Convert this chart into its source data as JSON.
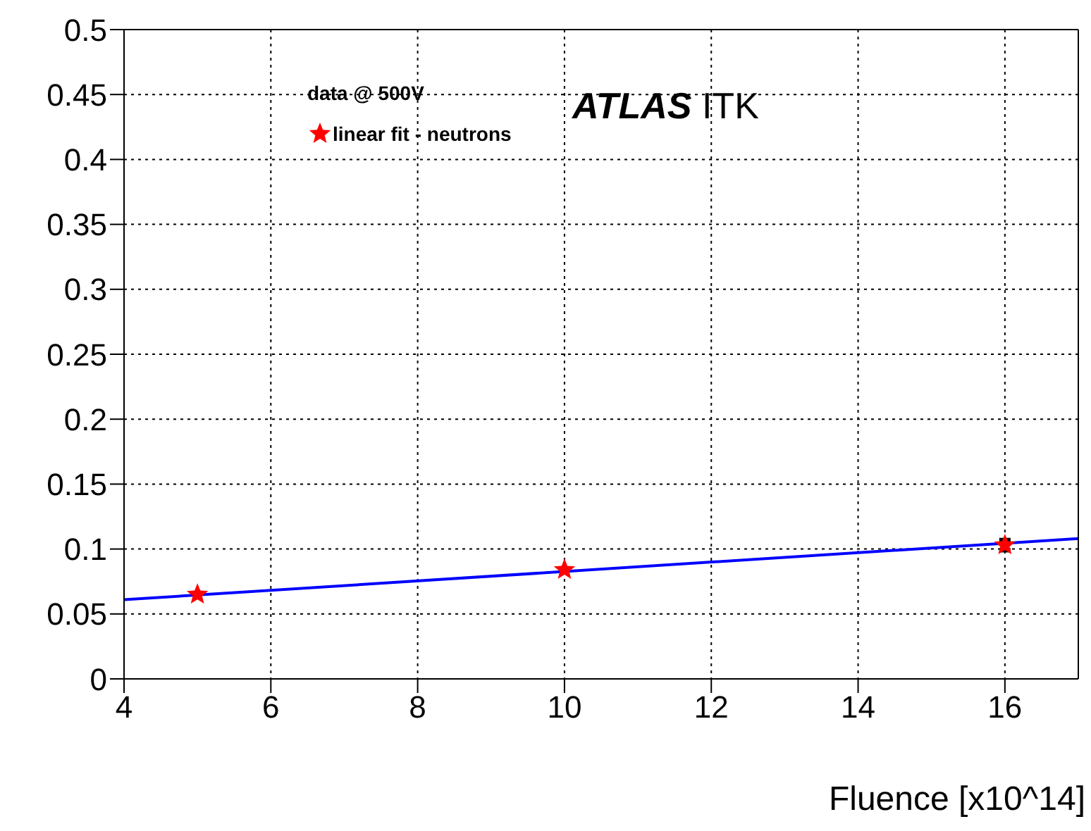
{
  "chart_data": {
    "type": "scatter",
    "xlabel": "Fluence [x10^14]",
    "legend_title": "data @ 500V",
    "annotations": [
      "ATLAS ITK"
    ],
    "xlim": [
      4,
      17
    ],
    "xticks": [
      4,
      6,
      8,
      10,
      12,
      14,
      16
    ],
    "ylim": [
      0,
      0.5
    ],
    "yticks": [
      0,
      0.05,
      0.1,
      0.15,
      0.2,
      0.25,
      0.3,
      0.35,
      0.4,
      0.45,
      0.5
    ],
    "grid": true,
    "legend": "top left",
    "series": [
      {
        "type": "scatter",
        "name": "linear fit - neutrons",
        "color": "#ff0000",
        "marker": "star",
        "x": [
          5,
          10,
          16
        ],
        "values": [
          0.065,
          0.084,
          0.103
        ],
        "errors": [
          null,
          null,
          0.004
        ]
      },
      {
        "type": "line",
        "color": "#0000ff",
        "marker": "none",
        "x": [
          4,
          17
        ],
        "values": [
          0.061,
          0.108
        ]
      }
    ]
  }
}
